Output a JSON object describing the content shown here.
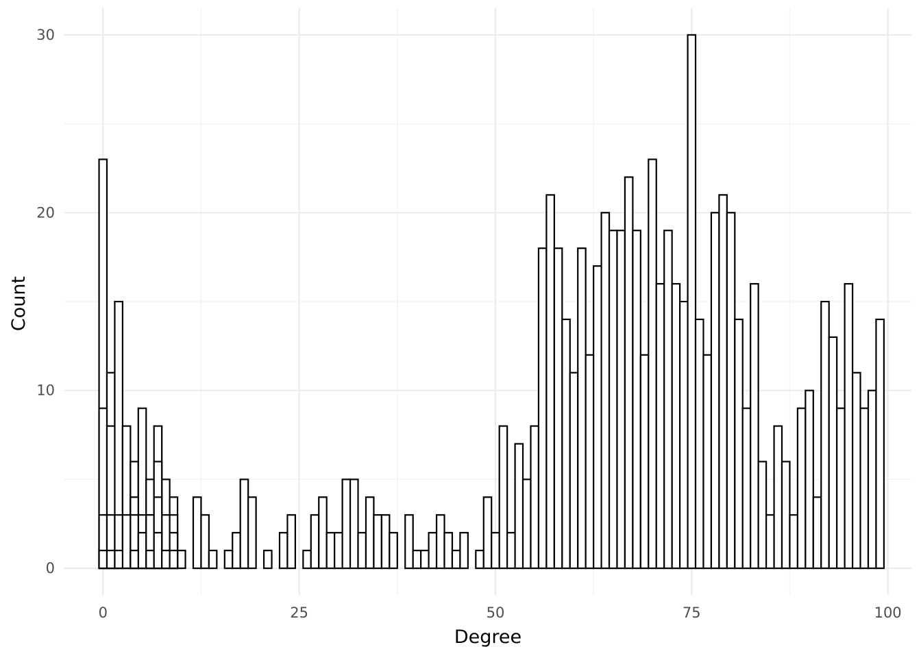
{
  "chart_data": {
    "type": "bar",
    "title": "",
    "xlabel": "Degree",
    "ylabel": "Count",
    "xlim": [
      -5,
      103
    ],
    "ylim": [
      -1.5,
      31.5
    ],
    "x_ticks": [
      0,
      25,
      50,
      75,
      100
    ],
    "x_tick_labels": [
      "0",
      "25",
      "50",
      "75",
      "100"
    ],
    "x_minor_ticks": [
      12.5,
      37.5,
      62.5,
      87.5
    ],
    "y_ticks": [
      0,
      10,
      20,
      30
    ],
    "y_tick_labels": [
      "0",
      "10",
      "20",
      "30"
    ],
    "y_minor_ticks": [
      5,
      15,
      25
    ],
    "grid": true,
    "bar_fill": "#ffffff",
    "bar_outline": "#000000",
    "series": [
      {
        "values": [
          {
            "x": 0,
            "y": 23
          },
          {
            "x": 1,
            "y": 11
          },
          {
            "x": 2,
            "y": 15
          },
          {
            "x": 3,
            "y": 8
          },
          {
            "x": 4,
            "y": 6
          },
          {
            "x": 5,
            "y": 9
          },
          {
            "x": 6,
            "y": 5
          },
          {
            "x": 7,
            "y": 8
          },
          {
            "x": 8,
            "y": 5
          },
          {
            "x": 9,
            "y": 4
          },
          {
            "x": 10,
            "y": 1
          },
          {
            "x": 12,
            "y": 4
          },
          {
            "x": 13,
            "y": 3
          },
          {
            "x": 14,
            "y": 1
          },
          {
            "x": 16,
            "y": 1
          },
          {
            "x": 17,
            "y": 2
          },
          {
            "x": 18,
            "y": 5
          },
          {
            "x": 19,
            "y": 4
          },
          {
            "x": 21,
            "y": 1
          },
          {
            "x": 23,
            "y": 2
          },
          {
            "x": 24,
            "y": 3
          },
          {
            "x": 26,
            "y": 1
          },
          {
            "x": 27,
            "y": 3
          },
          {
            "x": 28,
            "y": 4
          },
          {
            "x": 29,
            "y": 2
          },
          {
            "x": 30,
            "y": 2
          },
          {
            "x": 31,
            "y": 5
          },
          {
            "x": 32,
            "y": 5
          },
          {
            "x": 33,
            "y": 2
          },
          {
            "x": 34,
            "y": 4
          },
          {
            "x": 35,
            "y": 3
          },
          {
            "x": 36,
            "y": 3
          },
          {
            "x": 37,
            "y": 2
          },
          {
            "x": 39,
            "y": 3
          },
          {
            "x": 40,
            "y": 1
          },
          {
            "x": 41,
            "y": 1
          },
          {
            "x": 42,
            "y": 2
          },
          {
            "x": 43,
            "y": 3
          },
          {
            "x": 44,
            "y": 2
          },
          {
            "x": 45,
            "y": 1
          },
          {
            "x": 46,
            "y": 2
          },
          {
            "x": 48,
            "y": 1
          },
          {
            "x": 49,
            "y": 4
          },
          {
            "x": 50,
            "y": 2
          },
          {
            "x": 51,
            "y": 8
          },
          {
            "x": 52,
            "y": 2
          },
          {
            "x": 53,
            "y": 7
          },
          {
            "x": 54,
            "y": 5
          },
          {
            "x": 55,
            "y": 8
          },
          {
            "x": 56,
            "y": 18
          },
          {
            "x": 57,
            "y": 21
          },
          {
            "x": 58,
            "y": 18
          },
          {
            "x": 59,
            "y": 14
          },
          {
            "x": 60,
            "y": 11
          },
          {
            "x": 61,
            "y": 18
          },
          {
            "x": 62,
            "y": 12
          },
          {
            "x": 63,
            "y": 17
          },
          {
            "x": 64,
            "y": 20
          },
          {
            "x": 65,
            "y": 19
          },
          {
            "x": 66,
            "y": 19
          },
          {
            "x": 67,
            "y": 22
          },
          {
            "x": 68,
            "y": 19
          },
          {
            "x": 69,
            "y": 12
          },
          {
            "x": 70,
            "y": 23
          },
          {
            "x": 71,
            "y": 16
          },
          {
            "x": 72,
            "y": 19
          },
          {
            "x": 73,
            "y": 16
          },
          {
            "x": 74,
            "y": 15
          },
          {
            "x": 75,
            "y": 30
          },
          {
            "x": 76,
            "y": 14
          },
          {
            "x": 77,
            "y": 12
          },
          {
            "x": 78,
            "y": 20
          },
          {
            "x": 79,
            "y": 21
          },
          {
            "x": 80,
            "y": 20
          },
          {
            "x": 81,
            "y": 14
          },
          {
            "x": 82,
            "y": 9
          },
          {
            "x": 83,
            "y": 16
          },
          {
            "x": 84,
            "y": 6
          },
          {
            "x": 85,
            "y": 3
          },
          {
            "x": 86,
            "y": 8
          },
          {
            "x": 87,
            "y": 6
          },
          {
            "x": 88,
            "y": 3
          },
          {
            "x": 89,
            "y": 9
          },
          {
            "x": 90,
            "y": 10
          },
          {
            "x": 91,
            "y": 4
          },
          {
            "x": 92,
            "y": 15
          },
          {
            "x": 93,
            "y": 13
          },
          {
            "x": 94,
            "y": 9
          },
          {
            "x": 95,
            "y": 16
          },
          {
            "x": 96,
            "y": 11
          },
          {
            "x": 97,
            "y": 9
          },
          {
            "x": 98,
            "y": 10
          },
          {
            "x": 99,
            "y": 14
          }
        ]
      },
      {
        "values": [
          {
            "x": 0,
            "y": 9
          },
          {
            "x": 1,
            "y": 8
          },
          {
            "x": 4,
            "y": 4
          },
          {
            "x": 5,
            "y": 3
          },
          {
            "x": 6,
            "y": 3
          },
          {
            "x": 7,
            "y": 6
          },
          {
            "x": 8,
            "y": 3
          },
          {
            "x": 9,
            "y": 3
          }
        ]
      },
      {
        "values": [
          {
            "x": 0,
            "y": 3
          },
          {
            "x": 1,
            "y": 3
          },
          {
            "x": 2,
            "y": 3
          },
          {
            "x": 3,
            "y": 3
          },
          {
            "x": 4,
            "y": 3
          },
          {
            "x": 5,
            "y": 2
          },
          {
            "x": 6,
            "y": 3
          },
          {
            "x": 7,
            "y": 4
          },
          {
            "x": 8,
            "y": 1
          },
          {
            "x": 9,
            "y": 2
          }
        ]
      },
      {
        "values": [
          {
            "x": 0,
            "y": 1
          },
          {
            "x": 1,
            "y": 1
          },
          {
            "x": 2,
            "y": 1
          },
          {
            "x": 4,
            "y": 1
          },
          {
            "x": 6,
            "y": 1
          },
          {
            "x": 7,
            "y": 2
          },
          {
            "x": 8,
            "y": 1
          },
          {
            "x": 9,
            "y": 1
          }
        ]
      }
    ]
  }
}
